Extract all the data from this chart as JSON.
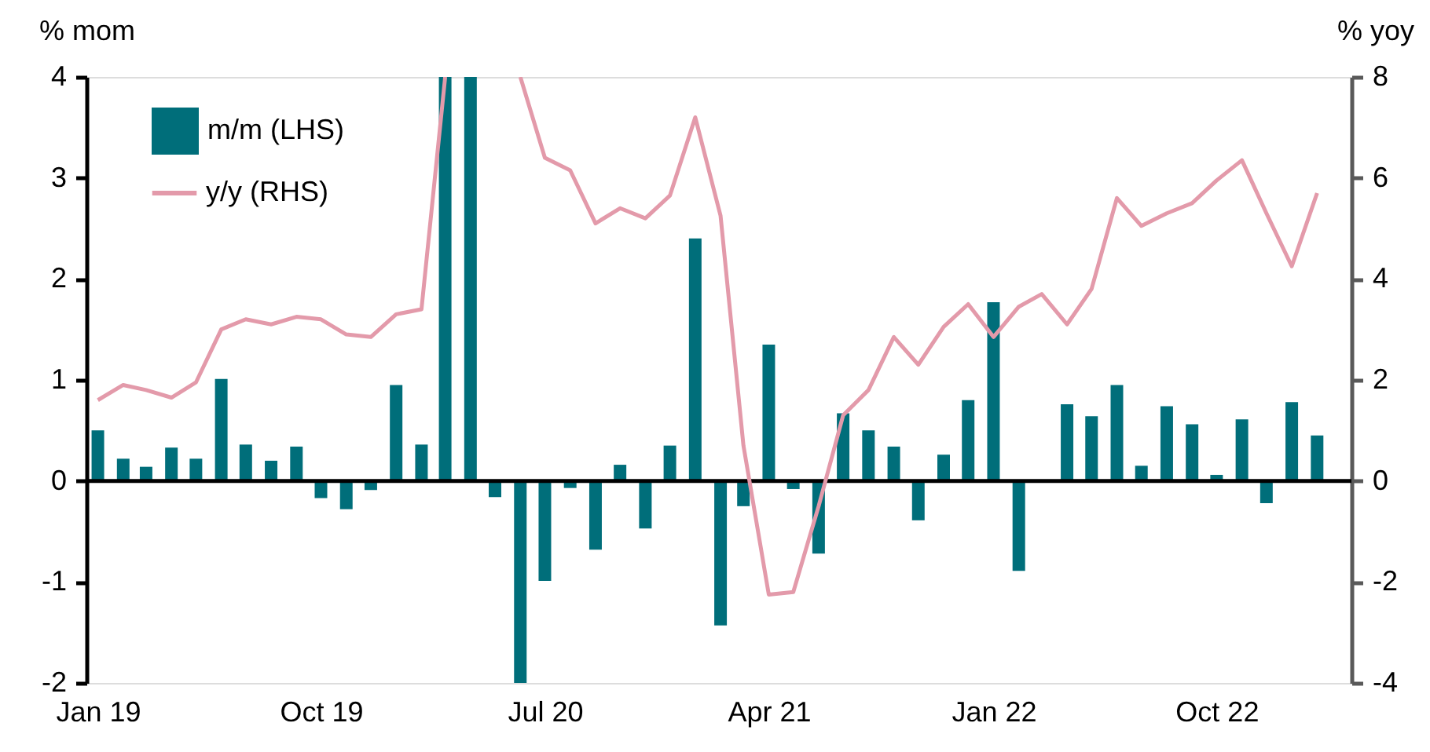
{
  "chart_data": {
    "type": "bar",
    "x": [
      "2019-01",
      "2019-02",
      "2019-03",
      "2019-04",
      "2019-05",
      "2019-06",
      "2019-07",
      "2019-08",
      "2019-09",
      "2019-10",
      "2019-11",
      "2019-12",
      "2020-01",
      "2020-02",
      "2020-03",
      "2020-04",
      "2020-05",
      "2020-06",
      "2020-07",
      "2020-08",
      "2020-09",
      "2020-10",
      "2020-11",
      "2020-12",
      "2021-01",
      "2021-02",
      "2021-03",
      "2021-04",
      "2021-05",
      "2021-06",
      "2021-07",
      "2021-08",
      "2021-09",
      "2021-10",
      "2021-11",
      "2021-12",
      "2022-01",
      "2022-02",
      "2022-03",
      "2022-04",
      "2022-05",
      "2022-06",
      "2022-07",
      "2022-08",
      "2022-09",
      "2022-10",
      "2022-11",
      "2022-12",
      "2023-01",
      "2023-02"
    ],
    "series": [
      {
        "name": "m/m (LHS)",
        "type": "bar",
        "color": "#006e7a",
        "values": [
          0.5,
          0.22,
          0.14,
          0.33,
          0.22,
          1.01,
          0.36,
          0.2,
          0.34,
          -0.17,
          -0.28,
          -0.09,
          0.95,
          0.36,
          4,
          4,
          -0.16,
          -2,
          -0.99,
          -0.07,
          -0.68,
          0.16,
          -0.47,
          0.35,
          2.4,
          -1.43,
          -0.25,
          1.35,
          -0.08,
          -0.72,
          0.67,
          0.5,
          0.34,
          -0.39,
          0.26,
          0.8,
          1.77,
          -0.89,
          0,
          0.76,
          0.64,
          0.95,
          0.15,
          0.74,
          0.56,
          0.06,
          0.61,
          -0.22,
          0.78,
          0.45
        ]
      },
      {
        "name": "y/y (RHS)",
        "type": "line",
        "axis": "y2",
        "color": "#e39aaa",
        "values": [
          1.6,
          1.9,
          1.8,
          1.65,
          1.95,
          3.0,
          3.2,
          3.1,
          3.25,
          3.2,
          2.9,
          2.85,
          3.3,
          3.4,
          8,
          null,
          null,
          8,
          6.4,
          6.15,
          5.1,
          5.4,
          5.2,
          5.65,
          7.2,
          5.25,
          0.7,
          -2.25,
          -2.2,
          -0.5,
          1.3,
          1.8,
          2.85,
          2.3,
          3.05,
          3.5,
          2.85,
          3.45,
          3.7,
          3.1,
          3.8,
          5.6,
          5.05,
          5.3,
          5.5,
          5.95,
          6.35,
          5.3,
          4.25,
          5.7
        ]
      }
    ],
    "ylabel": "% mom",
    "y2label": "% yoy",
    "xlim": [
      "2018-12-18",
      "2023-03-15"
    ],
    "xticks": [
      {
        "value": "2019-01",
        "label": "Jan 19"
      },
      {
        "value": "2019-10",
        "label": "Oct 19"
      },
      {
        "value": "2020-07",
        "label": "Jul 20"
      },
      {
        "value": "2021-04",
        "label": "Apr 21"
      },
      {
        "value": "2022-01",
        "label": "Jan 22"
      },
      {
        "value": "2022-10",
        "label": "Oct 22"
      }
    ],
    "ylim": [
      -2,
      4
    ],
    "yticks": [
      -2,
      -1,
      0,
      1,
      2,
      3,
      4
    ],
    "y2lim": [
      -4,
      8
    ],
    "y2ticks": [
      -4,
      -2,
      0,
      2,
      4,
      6,
      8
    ],
    "ref_lines": [
      {
        "axis": "y",
        "value": 0,
        "color": "#000000"
      }
    ],
    "grid": false,
    "legend": "top left"
  }
}
